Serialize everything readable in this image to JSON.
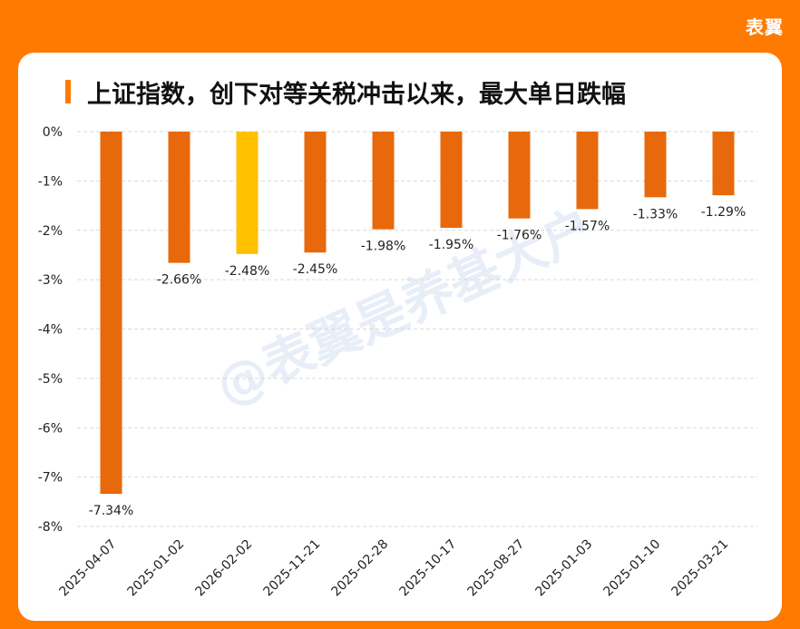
{
  "brand": "表翼",
  "watermark": "@表翼是养基大户",
  "chart_data": {
    "type": "bar",
    "title": "上证指数，创下对等关税冲击以来，最大单日跌幅",
    "categories": [
      "2025-04-07",
      "2025-01-02",
      "2026-02-02",
      "2025-11-21",
      "2025-02-28",
      "2025-10-17",
      "2025-08-27",
      "2025-01-03",
      "2025-01-10",
      "2025-03-21"
    ],
    "values": [
      -7.34,
      -2.66,
      -2.48,
      -2.45,
      -1.98,
      -1.95,
      -1.76,
      -1.57,
      -1.33,
      -1.29
    ],
    "labels": [
      "-7.34%",
      "-2.66%",
      "-2.48%",
      "-2.45%",
      "-1.98%",
      "-1.95%",
      "-1.76%",
      "-1.57%",
      "-1.33%",
      "-1.29%"
    ],
    "yticks": [
      "0%",
      "-1%",
      "-2%",
      "-3%",
      "-4%",
      "-5%",
      "-6%",
      "-7%",
      "-8%"
    ],
    "ylim": [
      -8,
      0
    ],
    "highlight_index": 2,
    "colors": {
      "bar": "#e8690c",
      "highlight": "#ffc000",
      "accent": "#ff7a00"
    }
  }
}
